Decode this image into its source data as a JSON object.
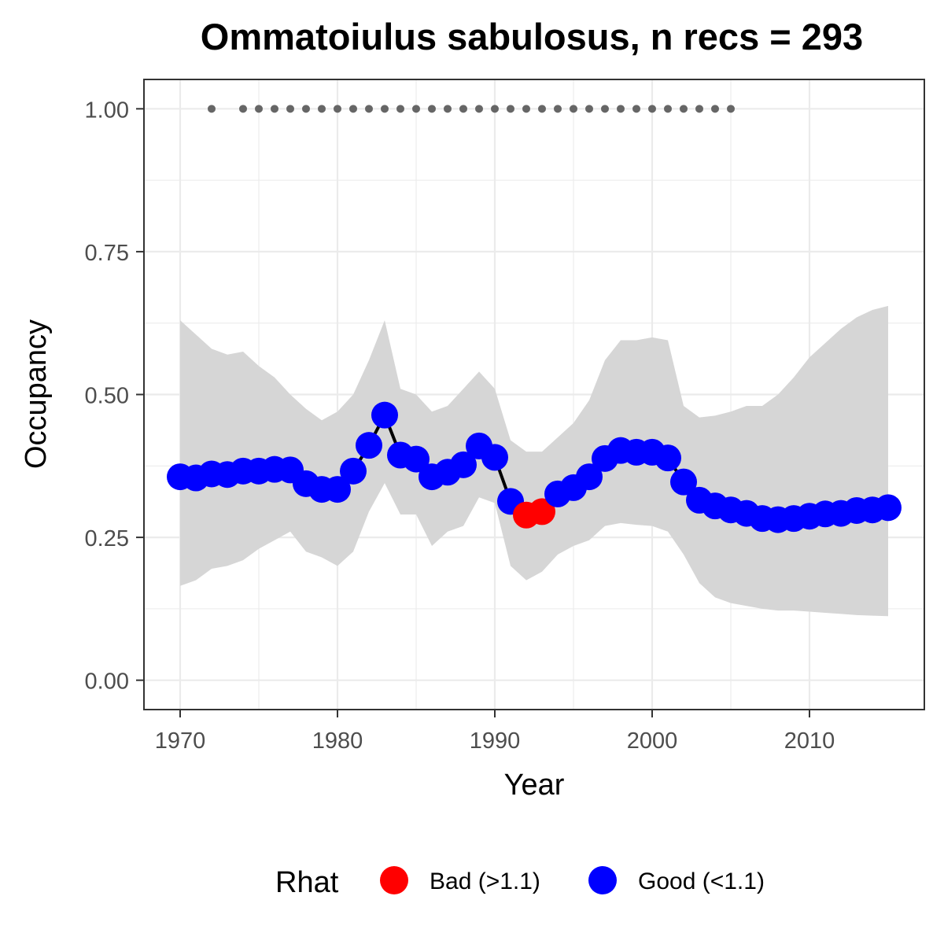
{
  "chart_data": {
    "type": "line",
    "title": "Ommatoiulus sabulosus, n recs = 293",
    "xlabel": "Year",
    "ylabel": "Occupancy",
    "xlim": [
      1967.75,
      2017.25
    ],
    "ylim": [
      -0.05,
      1.05
    ],
    "x_ticks": [
      1970,
      1980,
      1990,
      2000,
      2010
    ],
    "x_tick_labels": [
      "1970",
      "1980",
      "1990",
      "2000",
      "2010"
    ],
    "y_ticks": [
      0,
      0.25,
      0.5,
      0.75,
      1.0
    ],
    "y_tick_labels": [
      "0.00",
      "0.25",
      "0.50",
      "0.75",
      "1.00"
    ],
    "grid": true,
    "legend": {
      "title": "Rhat",
      "position": "bottom",
      "items": [
        {
          "label": "Bad (>1.1)",
          "color": "#ff0000"
        },
        {
          "label": "Good (<1.1)",
          "color": "#0000ff"
        }
      ]
    },
    "colors": {
      "bad": "#ff0000",
      "good": "#0000ff",
      "line": "#000000",
      "ribbon": "#d6d6d6",
      "records": "#666666"
    },
    "series": [
      {
        "name": "Occupancy",
        "points": [
          {
            "x": 1970,
            "y": 0.356,
            "rhat": "good"
          },
          {
            "x": 1971,
            "y": 0.354,
            "rhat": "good"
          },
          {
            "x": 1972,
            "y": 0.361,
            "rhat": "good"
          },
          {
            "x": 1973,
            "y": 0.36,
            "rhat": "good"
          },
          {
            "x": 1974,
            "y": 0.366,
            "rhat": "good"
          },
          {
            "x": 1975,
            "y": 0.366,
            "rhat": "good"
          },
          {
            "x": 1976,
            "y": 0.369,
            "rhat": "good"
          },
          {
            "x": 1977,
            "y": 0.368,
            "rhat": "good"
          },
          {
            "x": 1978,
            "y": 0.344,
            "rhat": "good"
          },
          {
            "x": 1979,
            "y": 0.334,
            "rhat": "good"
          },
          {
            "x": 1980,
            "y": 0.334,
            "rhat": "good"
          },
          {
            "x": 1981,
            "y": 0.366,
            "rhat": "good"
          },
          {
            "x": 1982,
            "y": 0.411,
            "rhat": "good"
          },
          {
            "x": 1983,
            "y": 0.464,
            "rhat": "good"
          },
          {
            "x": 1984,
            "y": 0.394,
            "rhat": "good"
          },
          {
            "x": 1985,
            "y": 0.387,
            "rhat": "good"
          },
          {
            "x": 1986,
            "y": 0.356,
            "rhat": "good"
          },
          {
            "x": 1987,
            "y": 0.364,
            "rhat": "good"
          },
          {
            "x": 1988,
            "y": 0.377,
            "rhat": "good"
          },
          {
            "x": 1989,
            "y": 0.41,
            "rhat": "good"
          },
          {
            "x": 1990,
            "y": 0.39,
            "rhat": "good"
          },
          {
            "x": 1991,
            "y": 0.313,
            "rhat": "good"
          },
          {
            "x": 1992,
            "y": 0.289,
            "rhat": "bad"
          },
          {
            "x": 1993,
            "y": 0.295,
            "rhat": "bad"
          },
          {
            "x": 1994,
            "y": 0.326,
            "rhat": "good"
          },
          {
            "x": 1995,
            "y": 0.337,
            "rhat": "good"
          },
          {
            "x": 1996,
            "y": 0.356,
            "rhat": "good"
          },
          {
            "x": 1997,
            "y": 0.388,
            "rhat": "good"
          },
          {
            "x": 1998,
            "y": 0.402,
            "rhat": "good"
          },
          {
            "x": 1999,
            "y": 0.399,
            "rhat": "good"
          },
          {
            "x": 2000,
            "y": 0.399,
            "rhat": "good"
          },
          {
            "x": 2001,
            "y": 0.389,
            "rhat": "good"
          },
          {
            "x": 2002,
            "y": 0.347,
            "rhat": "good"
          },
          {
            "x": 2003,
            "y": 0.315,
            "rhat": "good"
          },
          {
            "x": 2004,
            "y": 0.305,
            "rhat": "good"
          },
          {
            "x": 2005,
            "y": 0.298,
            "rhat": "good"
          },
          {
            "x": 2006,
            "y": 0.292,
            "rhat": "good"
          },
          {
            "x": 2007,
            "y": 0.283,
            "rhat": "good"
          },
          {
            "x": 2008,
            "y": 0.281,
            "rhat": "good"
          },
          {
            "x": 2009,
            "y": 0.283,
            "rhat": "good"
          },
          {
            "x": 2010,
            "y": 0.287,
            "rhat": "good"
          },
          {
            "x": 2011,
            "y": 0.291,
            "rhat": "good"
          },
          {
            "x": 2012,
            "y": 0.292,
            "rhat": "good"
          },
          {
            "x": 2013,
            "y": 0.297,
            "rhat": "good"
          },
          {
            "x": 2014,
            "y": 0.298,
            "rhat": "good"
          },
          {
            "x": 2015,
            "y": 0.302,
            "rhat": "good"
          }
        ]
      }
    ],
    "credible_interval": {
      "x": [
        1970,
        1971,
        1972,
        1973,
        1974,
        1975,
        1976,
        1977,
        1978,
        1979,
        1980,
        1981,
        1982,
        1983,
        1984,
        1985,
        1986,
        1987,
        1988,
        1989,
        1990,
        1991,
        1992,
        1993,
        1994,
        1995,
        1996,
        1997,
        1998,
        1999,
        2000,
        2001,
        2002,
        2003,
        2004,
        2005,
        2006,
        2007,
        2008,
        2009,
        2010,
        2011,
        2012,
        2013,
        2014,
        2015
      ],
      "upper": [
        0.63,
        0.605,
        0.58,
        0.57,
        0.575,
        0.55,
        0.53,
        0.5,
        0.475,
        0.455,
        0.47,
        0.5,
        0.56,
        0.63,
        0.51,
        0.5,
        0.47,
        0.48,
        0.51,
        0.54,
        0.51,
        0.42,
        0.4,
        0.4,
        0.425,
        0.45,
        0.49,
        0.56,
        0.595,
        0.595,
        0.6,
        0.595,
        0.48,
        0.46,
        0.463,
        0.47,
        0.48,
        0.48,
        0.5,
        0.53,
        0.565,
        0.59,
        0.615,
        0.635,
        0.648,
        0.655
      ],
      "lower": [
        0.165,
        0.175,
        0.195,
        0.2,
        0.21,
        0.23,
        0.245,
        0.26,
        0.225,
        0.215,
        0.2,
        0.225,
        0.295,
        0.345,
        0.29,
        0.29,
        0.235,
        0.26,
        0.27,
        0.32,
        0.31,
        0.2,
        0.175,
        0.19,
        0.22,
        0.235,
        0.245,
        0.27,
        0.275,
        0.272,
        0.27,
        0.26,
        0.22,
        0.17,
        0.145,
        0.135,
        0.13,
        0.125,
        0.122,
        0.122,
        0.12,
        0.118,
        0.116,
        0.114,
        0.113,
        0.112
      ]
    },
    "record_years": {
      "y": 1.0,
      "x": [
        1972,
        1974,
        1975,
        1976,
        1977,
        1978,
        1979,
        1980,
        1981,
        1982,
        1983,
        1984,
        1985,
        1986,
        1987,
        1988,
        1989,
        1990,
        1991,
        1992,
        1993,
        1994,
        1995,
        1996,
        1997,
        1998,
        1999,
        2000,
        2001,
        2002,
        2003,
        2004,
        2005
      ]
    }
  }
}
